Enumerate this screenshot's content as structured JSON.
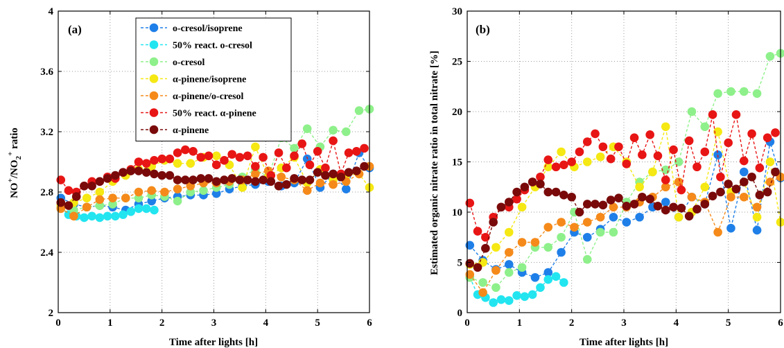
{
  "chart_data": [
    {
      "type": "scatter",
      "panel_label": "(a)",
      "xlabel": "Time after lights [h]",
      "ylabel": {
        "prefix": "NO",
        "sup1": "+",
        "mid": "/NO",
        "sub": "2",
        "sup2": "+",
        "suffix": " ratio"
      },
      "xlim": [
        0,
        6
      ],
      "ylim": [
        2,
        4
      ],
      "xticks": [
        0,
        1,
        2,
        3,
        4,
        5,
        6
      ],
      "yticks": [
        2,
        2.4,
        2.8,
        3.2,
        3.6,
        4
      ],
      "xtick_labels": [
        "0",
        "1",
        "2",
        "3",
        "4",
        "5",
        "6"
      ],
      "ytick_labels": [
        "2",
        "2.4",
        "2.8",
        "3.2",
        "3.6",
        "4"
      ],
      "grid": true,
      "legend_position": "top-center",
      "series": [
        {
          "name": "o-cresol/isoprene",
          "color": "#1f7fe8",
          "x": [
            0.05,
            0.3,
            0.55,
            0.8,
            1.05,
            1.3,
            1.55,
            1.8,
            2.05,
            2.3,
            2.55,
            2.8,
            3.05,
            3.3,
            3.55,
            3.8,
            4.05,
            4.3,
            4.55,
            4.8,
            5.05,
            5.3,
            5.55,
            5.8,
            6.0
          ],
          "y": [
            2.76,
            2.72,
            2.7,
            2.71,
            2.7,
            2.68,
            2.72,
            2.74,
            2.76,
            2.77,
            2.78,
            2.78,
            2.79,
            2.82,
            2.84,
            2.85,
            2.87,
            2.84,
            2.86,
            3.02,
            2.83,
            2.92,
            2.82,
            3.06,
            2.96
          ]
        },
        {
          "name": "50% react. o-cresol",
          "color": "#22e5f0",
          "x": [
            0.05,
            0.2,
            0.35,
            0.5,
            0.65,
            0.8,
            0.95,
            1.1,
            1.25,
            1.4,
            1.55,
            1.7,
            1.85
          ],
          "y": [
            2.7,
            2.65,
            2.64,
            2.63,
            2.64,
            2.63,
            2.64,
            2.64,
            2.65,
            2.67,
            2.69,
            2.69,
            2.68
          ]
        },
        {
          "name": "o-cresol",
          "color": "#8ef08a",
          "x": [
            0.05,
            0.3,
            0.55,
            0.8,
            1.05,
            1.3,
            1.55,
            1.8,
            2.05,
            2.3,
            2.55,
            2.8,
            3.05,
            3.3,
            3.55,
            3.8,
            4.05,
            4.3,
            4.55,
            4.8,
            5.05,
            5.3,
            5.55,
            5.8,
            6.0
          ],
          "y": [
            2.7,
            2.68,
            2.7,
            2.71,
            2.72,
            2.76,
            2.76,
            2.78,
            2.77,
            2.74,
            2.8,
            2.81,
            2.83,
            2.85,
            2.9,
            2.95,
            2.9,
            3.16,
            3.09,
            3.22,
            3.1,
            3.21,
            3.2,
            3.34,
            3.35
          ]
        },
        {
          "name": "α-pinene/isoprene",
          "color": "#f5e813",
          "x": [
            0.05,
            0.3,
            0.55,
            0.8,
            1.05,
            1.3,
            1.55,
            1.8,
            2.05,
            2.3,
            2.55,
            2.8,
            3.05,
            3.3,
            3.55,
            3.8,
            4.05,
            4.3,
            4.55,
            4.8,
            5.05,
            5.3,
            5.55,
            5.8,
            6.0
          ],
          "y": [
            2.71,
            2.73,
            2.76,
            2.8,
            2.87,
            2.91,
            2.95,
            2.97,
            3.01,
            2.99,
            2.99,
            3.03,
            3.04,
            2.98,
            2.83,
            3.1,
            2.9,
            2.96,
            3.03,
            2.86,
            2.95,
            2.88,
            2.91,
            2.92,
            2.83
          ]
        },
        {
          "name": "α-pinene/o-cresol",
          "color": "#f58a1a",
          "x": [
            0.05,
            0.3,
            0.55,
            0.8,
            1.05,
            1.3,
            1.55,
            1.8,
            2.05,
            2.3,
            2.55,
            2.8,
            3.05,
            3.3,
            3.55,
            3.8,
            4.05,
            4.3,
            4.55,
            4.8,
            5.05,
            5.3,
            5.55,
            5.8,
            6.0
          ],
          "y": [
            2.69,
            2.64,
            2.7,
            2.75,
            2.76,
            2.76,
            2.8,
            2.81,
            2.8,
            2.82,
            2.84,
            2.86,
            2.86,
            2.87,
            2.88,
            2.92,
            2.94,
            2.9,
            2.88,
            2.81,
            2.86,
            2.85,
            2.87,
            2.92,
            2.97
          ]
        },
        {
          "name": "50% react. α-pinene",
          "color": "#e81515",
          "x": [
            0.05,
            0.2,
            0.35,
            0.5,
            0.65,
            0.8,
            0.95,
            1.1,
            1.25,
            1.4,
            1.55,
            1.7,
            1.85,
            2.0,
            2.15,
            2.3,
            2.45,
            2.6,
            2.75,
            2.9,
            3.05,
            3.2,
            3.35,
            3.5,
            3.65,
            3.8,
            3.95,
            4.1,
            4.25,
            4.4,
            4.55,
            4.7,
            4.85,
            5.0,
            5.15,
            5.3,
            5.45,
            5.6,
            5.75,
            5.9
          ],
          "y": [
            2.88,
            2.81,
            2.8,
            2.84,
            2.87,
            2.87,
            2.9,
            2.89,
            2.93,
            2.95,
            3.0,
            2.99,
            3.01,
            3.02,
            3.02,
            3.06,
            3.08,
            3.07,
            3.03,
            3.04,
            2.98,
            3.01,
            3.05,
            3.03,
            3.04,
            2.97,
            3.03,
            2.91,
            3.06,
            2.96,
            3.04,
            3.12,
            2.98,
            3.07,
            2.96,
            3.14,
            2.92,
            3.06,
            3.07,
            3.09
          ]
        },
        {
          "name": "α-pinene",
          "color": "#7a0a0a",
          "x": [
            0.05,
            0.2,
            0.35,
            0.5,
            0.65,
            0.8,
            0.95,
            1.1,
            1.25,
            1.4,
            1.55,
            1.7,
            1.85,
            2.0,
            2.15,
            2.3,
            2.45,
            2.6,
            2.75,
            2.9,
            3.05,
            3.2,
            3.35,
            3.5,
            3.65,
            3.8,
            3.95,
            4.1,
            4.25,
            4.4,
            4.55,
            4.7,
            4.85,
            5.0,
            5.15,
            5.3,
            5.45,
            5.6,
            5.75,
            5.9
          ],
          "y": [
            2.73,
            2.71,
            2.77,
            2.84,
            2.84,
            2.87,
            2.89,
            2.91,
            2.93,
            2.94,
            2.94,
            2.93,
            2.92,
            2.91,
            2.91,
            2.88,
            2.88,
            2.88,
            2.89,
            2.89,
            2.87,
            2.88,
            2.89,
            2.88,
            2.88,
            2.87,
            2.88,
            2.87,
            2.84,
            2.85,
            2.89,
            2.88,
            2.88,
            2.93,
            2.91,
            2.92,
            2.9,
            2.93,
            2.94,
            2.97
          ]
        }
      ]
    },
    {
      "type": "scatter",
      "panel_label": "(b)",
      "xlabel": "Time after lights [h]",
      "ylabel": "Estimated organic nitrate ratio in total nitrate [%]",
      "xlim": [
        0,
        6
      ],
      "ylim": [
        0,
        30
      ],
      "xticks": [
        0,
        1,
        2,
        3,
        4,
        5,
        6
      ],
      "yticks": [
        0,
        5,
        10,
        15,
        20,
        25,
        30
      ],
      "xtick_labels": [
        "0",
        "1",
        "2",
        "3",
        "4",
        "5",
        "6"
      ],
      "ytick_labels": [
        "0",
        "5",
        "10",
        "15",
        "20",
        "25",
        "30"
      ],
      "grid": true,
      "series": [
        {
          "name": "o-cresol/isoprene",
          "color": "#1f7fe8",
          "x": [
            0.05,
            0.3,
            0.55,
            0.8,
            1.05,
            1.3,
            1.55,
            1.8,
            2.05,
            2.3,
            2.55,
            2.8,
            3.05,
            3.3,
            3.55,
            3.8,
            4.05,
            4.3,
            4.55,
            4.8,
            5.05,
            5.3,
            5.55,
            5.8,
            6.0
          ],
          "y": [
            6.7,
            5.2,
            4.3,
            4.8,
            4.0,
            3.5,
            4.0,
            6.0,
            8.0,
            7.5,
            8.3,
            9.5,
            9.0,
            9.5,
            10.5,
            11.0,
            9.5,
            11.5,
            10.8,
            15.7,
            8.4,
            14.0,
            8.2,
            17.0,
            13.4
          ]
        },
        {
          "name": "50% react. o-cresol",
          "color": "#22e5f0",
          "x": [
            0.05,
            0.2,
            0.35,
            0.5,
            0.65,
            0.8,
            0.95,
            1.1,
            1.25,
            1.4,
            1.55,
            1.7,
            1.85
          ],
          "y": [
            3.5,
            1.8,
            1.5,
            1.0,
            1.3,
            1.2,
            1.7,
            1.6,
            1.8,
            2.5,
            3.3,
            3.6,
            3.0
          ]
        },
        {
          "name": "o-cresol",
          "color": "#8ef08a",
          "x": [
            0.05,
            0.3,
            0.55,
            0.8,
            1.05,
            1.3,
            1.55,
            1.8,
            2.05,
            2.3,
            2.55,
            2.8,
            3.05,
            3.3,
            3.55,
            3.8,
            4.05,
            4.3,
            4.55,
            4.8,
            5.05,
            5.3,
            5.55,
            5.8,
            6.0
          ],
          "y": [
            3.5,
            3.0,
            2.5,
            4.0,
            4.5,
            6.5,
            6.5,
            7.5,
            10.0,
            5.3,
            8.0,
            8.0,
            11.0,
            13.0,
            14.0,
            14.2,
            15.0,
            20.0,
            18.5,
            21.8,
            22.0,
            22.0,
            21.8,
            25.5,
            25.8
          ]
        },
        {
          "name": "α-pinene/isoprene",
          "color": "#f5e813",
          "x": [
            0.05,
            0.3,
            0.55,
            0.8,
            1.05,
            1.3,
            1.55,
            1.8,
            2.05,
            2.3,
            2.55,
            2.8,
            3.05,
            3.3,
            3.55,
            3.8,
            4.05,
            4.3,
            4.55,
            4.8,
            5.05,
            5.3,
            5.55,
            5.8,
            6.0
          ],
          "y": [
            4.8,
            5.0,
            6.5,
            8.0,
            10.5,
            12.5,
            14.5,
            16.0,
            14.5,
            15.0,
            15.5,
            16.5,
            15.0,
            12.5,
            14.0,
            18.5,
            9.5,
            10.0,
            12.5,
            18.0,
            12.0,
            13.0,
            9.5,
            15.0,
            9.0
          ]
        },
        {
          "name": "α-pinene/o-cresol",
          "color": "#f58a1a",
          "x": [
            0.05,
            0.3,
            0.55,
            0.8,
            1.05,
            1.3,
            1.55,
            1.8,
            2.05,
            2.3,
            2.55,
            2.8,
            3.05,
            3.3,
            3.55,
            3.8,
            4.05,
            4.3,
            4.55,
            4.8,
            5.05,
            5.3,
            5.55,
            5.8,
            6.0
          ],
          "y": [
            3.8,
            2.0,
            4.2,
            6.0,
            7.0,
            7.0,
            8.5,
            9.0,
            8.5,
            9.0,
            9.5,
            10.5,
            10.5,
            11.0,
            11.5,
            12.5,
            13.0,
            11.5,
            11.0,
            8.0,
            11.5,
            11.5,
            10.5,
            13.0,
            13.5
          ]
        },
        {
          "name": "50% react. α-pinene",
          "color": "#e81515",
          "x": [
            0.05,
            0.2,
            0.35,
            0.5,
            0.65,
            0.8,
            0.95,
            1.1,
            1.25,
            1.4,
            1.55,
            1.7,
            1.85,
            2.0,
            2.15,
            2.3,
            2.45,
            2.6,
            2.75,
            2.9,
            3.05,
            3.2,
            3.35,
            3.5,
            3.65,
            3.8,
            3.95,
            4.1,
            4.25,
            4.4,
            4.55,
            4.7,
            4.85,
            5.0,
            5.15,
            5.3,
            5.45,
            5.6,
            5.75,
            5.9
          ],
          "y": [
            10.9,
            8.1,
            7.5,
            9.5,
            10.5,
            10.5,
            11.3,
            12.2,
            13.0,
            13.5,
            15.2,
            14.5,
            14.7,
            15.0,
            16.0,
            17.0,
            17.8,
            16.5,
            15.3,
            16.5,
            14.8,
            17.4,
            15.7,
            17.7,
            15.6,
            13.2,
            16.2,
            12.2,
            17.1,
            14.5,
            16.0,
            19.7,
            13.5,
            16.9,
            19.7,
            15.1,
            17.8,
            14.4,
            17.4,
            17.9
          ]
        },
        {
          "name": "α-pinene",
          "color": "#7a0a0a",
          "x": [
            0.05,
            0.2,
            0.35,
            0.5,
            0.65,
            0.8,
            0.95,
            1.1,
            1.25,
            1.4,
            1.55,
            1.7,
            1.85,
            2.0,
            2.15,
            2.3,
            2.45,
            2.6,
            2.75,
            2.9,
            3.05,
            3.2,
            3.35,
            3.5,
            3.65,
            3.8,
            3.95,
            4.1,
            4.25,
            4.4,
            4.55,
            4.7,
            4.85,
            5.0,
            5.15,
            5.3,
            5.45,
            5.6,
            5.75,
            5.9
          ],
          "y": [
            4.9,
            4.5,
            6.4,
            9.0,
            10.5,
            11.0,
            12.0,
            12.5,
            13.0,
            12.8,
            12.0,
            12.0,
            11.7,
            11.5,
            10.0,
            10.8,
            10.8,
            10.7,
            11.2,
            11.4,
            10.6,
            10.8,
            11.5,
            11.3,
            10.6,
            10.2,
            10.5,
            10.4,
            9.6,
            10.3,
            10.8,
            11.6,
            12.0,
            12.8,
            12.3,
            13.0,
            13.5,
            11.7,
            12.0,
            14.0
          ]
        }
      ]
    }
  ]
}
